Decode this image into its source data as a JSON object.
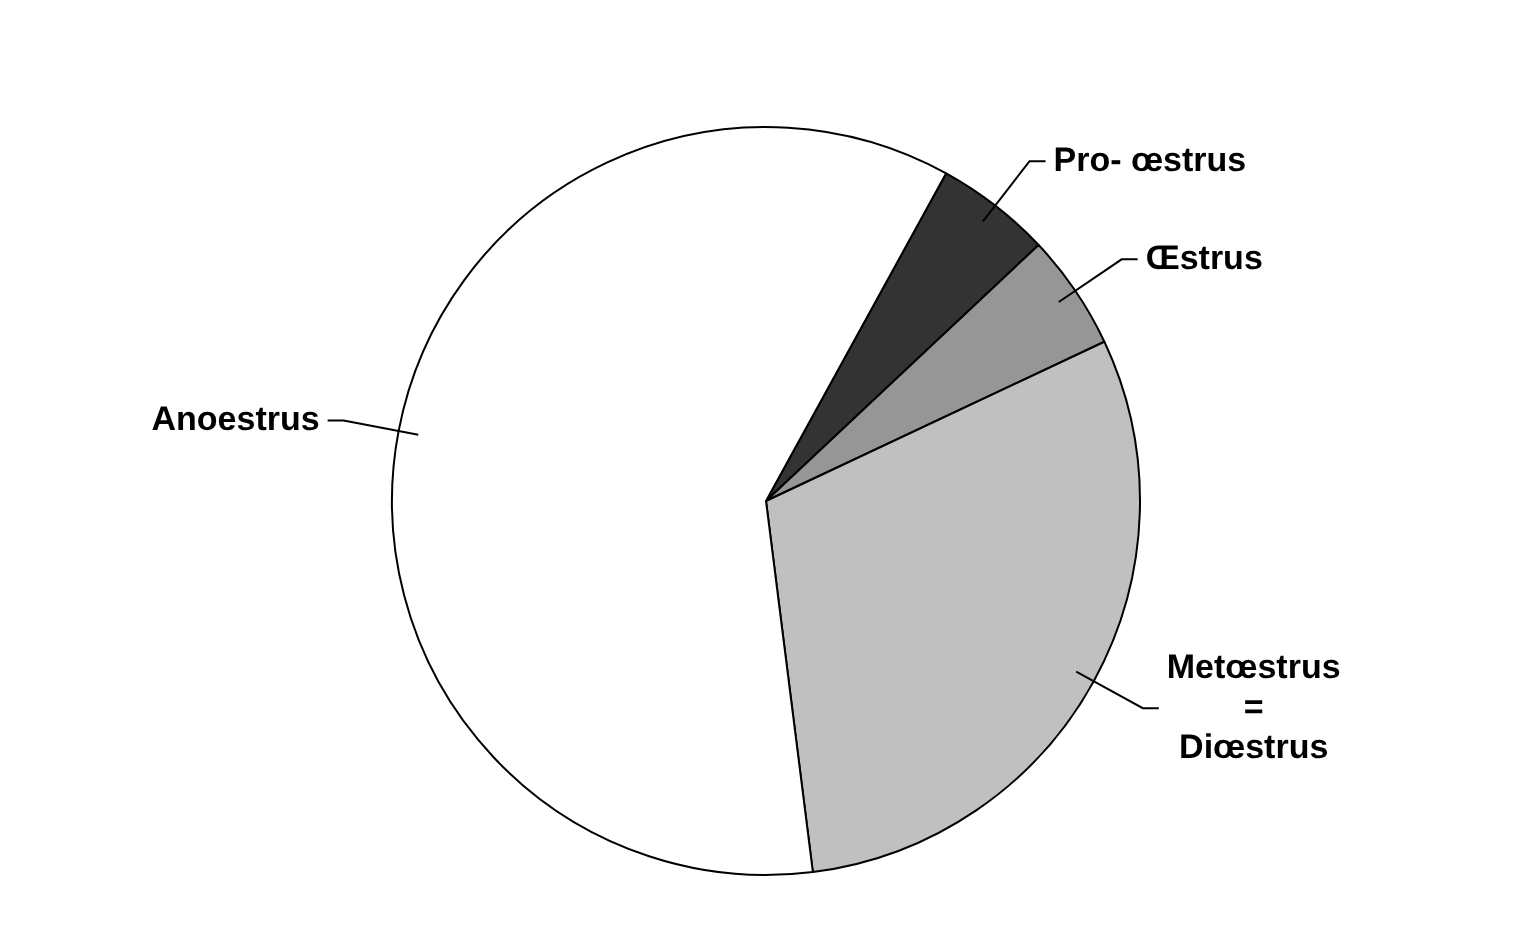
{
  "chart_data": {
    "type": "pie",
    "categories": [
      "Pro- œstrus",
      "Œstrus",
      "Metœstrus\n=\nDiœstrus",
      "Anoestrus"
    ],
    "values": [
      5,
      5,
      30,
      60
    ],
    "colors": [
      "#333333",
      "#969696",
      "#c0c0c0",
      "#ffffff"
    ],
    "legend": false
  }
}
